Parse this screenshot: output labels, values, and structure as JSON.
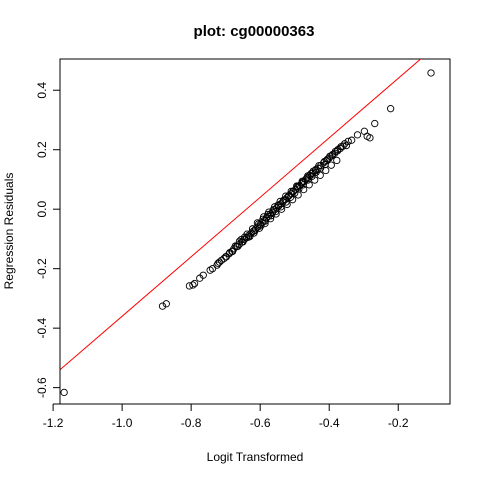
{
  "chart_data": {
    "type": "scatter",
    "title": "plot: cg00000363",
    "xlabel": "Logit Transformed",
    "ylabel": "Regression Residuals",
    "xlim": [
      -1.18,
      -0.05
    ],
    "ylim": [
      -0.655,
      0.505
    ],
    "x_ticks": [
      -1.2,
      -1.0,
      -0.8,
      -0.6,
      -0.4,
      -0.2
    ],
    "y_ticks": [
      -0.6,
      -0.4,
      -0.2,
      0.0,
      0.2,
      0.4
    ],
    "x_tick_labels": [
      "-1.2",
      "-1.0",
      "-0.8",
      "-0.6",
      "-0.4",
      "-0.2"
    ],
    "y_tick_labels": [
      "-0.6",
      "-0.4",
      "-0.2",
      "0.0",
      "0.2",
      "0.4"
    ],
    "grid": false,
    "point_color": "#000000",
    "point_style": "open-circle",
    "reference_line": {
      "color": "#ff0000",
      "intercept": 0.64,
      "slope": 1.0
    },
    "points": [
      {
        "x": -1.168,
        "y": -0.616
      },
      {
        "x": -0.883,
        "y": -0.326
      },
      {
        "x": -0.872,
        "y": -0.318
      },
      {
        "x": -0.805,
        "y": -0.258
      },
      {
        "x": -0.795,
        "y": -0.255
      },
      {
        "x": -0.79,
        "y": -0.25
      },
      {
        "x": -0.775,
        "y": -0.232
      },
      {
        "x": -0.765,
        "y": -0.222
      },
      {
        "x": -0.745,
        "y": -0.205
      },
      {
        "x": -0.738,
        "y": -0.2
      },
      {
        "x": -0.725,
        "y": -0.188
      },
      {
        "x": -0.718,
        "y": -0.178
      },
      {
        "x": -0.705,
        "y": -0.166
      },
      {
        "x": -0.698,
        "y": -0.16
      },
      {
        "x": -0.69,
        "y": -0.15
      },
      {
        "x": -0.682,
        "y": -0.142
      },
      {
        "x": -0.676,
        "y": -0.133
      },
      {
        "x": -0.668,
        "y": -0.125
      },
      {
        "x": -0.66,
        "y": -0.118
      },
      {
        "x": -0.653,
        "y": -0.11
      },
      {
        "x": -0.646,
        "y": -0.102
      },
      {
        "x": -0.64,
        "y": -0.096
      },
      {
        "x": -0.633,
        "y": -0.088
      },
      {
        "x": -0.626,
        "y": -0.081
      },
      {
        "x": -0.62,
        "y": -0.074
      },
      {
        "x": -0.613,
        "y": -0.066
      },
      {
        "x": -0.607,
        "y": -0.06
      },
      {
        "x": -0.6,
        "y": -0.052
      },
      {
        "x": -0.594,
        "y": -0.045
      },
      {
        "x": -0.588,
        "y": -0.038
      },
      {
        "x": -0.582,
        "y": -0.03
      },
      {
        "x": -0.576,
        "y": -0.024
      },
      {
        "x": -0.57,
        "y": -0.016
      },
      {
        "x": -0.564,
        "y": -0.01
      },
      {
        "x": -0.558,
        "y": -0.002
      },
      {
        "x": -0.552,
        "y": 0.004
      },
      {
        "x": -0.546,
        "y": 0.011
      },
      {
        "x": -0.54,
        "y": 0.018
      },
      {
        "x": -0.534,
        "y": 0.025
      },
      {
        "x": -0.528,
        "y": 0.032
      },
      {
        "x": -0.522,
        "y": 0.039
      },
      {
        "x": -0.516,
        "y": 0.046
      },
      {
        "x": -0.51,
        "y": 0.052
      },
      {
        "x": -0.504,
        "y": 0.059
      },
      {
        "x": -0.498,
        "y": 0.066
      },
      {
        "x": -0.492,
        "y": 0.072
      },
      {
        "x": -0.486,
        "y": 0.079
      },
      {
        "x": -0.48,
        "y": 0.086
      },
      {
        "x": -0.474,
        "y": 0.093
      },
      {
        "x": -0.468,
        "y": 0.1
      },
      {
        "x": -0.462,
        "y": 0.107
      },
      {
        "x": -0.456,
        "y": 0.114
      },
      {
        "x": -0.448,
        "y": 0.122
      },
      {
        "x": -0.44,
        "y": 0.13
      },
      {
        "x": -0.432,
        "y": 0.138
      },
      {
        "x": -0.424,
        "y": 0.147
      },
      {
        "x": -0.416,
        "y": 0.156
      },
      {
        "x": -0.408,
        "y": 0.164
      },
      {
        "x": -0.4,
        "y": 0.172
      },
      {
        "x": -0.392,
        "y": 0.18
      },
      {
        "x": -0.384,
        "y": 0.188
      },
      {
        "x": -0.376,
        "y": 0.196
      },
      {
        "x": -0.368,
        "y": 0.204
      },
      {
        "x": -0.36,
        "y": 0.212
      },
      {
        "x": -0.345,
        "y": 0.228
      },
      {
        "x": -0.318,
        "y": 0.25
      },
      {
        "x": -0.298,
        "y": 0.262
      },
      {
        "x": -0.29,
        "y": 0.245
      },
      {
        "x": -0.282,
        "y": 0.24
      },
      {
        "x": -0.268,
        "y": 0.288
      },
      {
        "x": -0.222,
        "y": 0.338
      },
      {
        "x": -0.105,
        "y": 0.458
      },
      {
        "x": -0.63,
        "y": -0.092
      },
      {
        "x": -0.615,
        "y": -0.072
      },
      {
        "x": -0.598,
        "y": -0.056
      },
      {
        "x": -0.585,
        "y": -0.04
      },
      {
        "x": -0.568,
        "y": -0.022
      },
      {
        "x": -0.555,
        "y": -0.008
      },
      {
        "x": -0.54,
        "y": 0.008
      },
      {
        "x": -0.525,
        "y": 0.024
      },
      {
        "x": -0.512,
        "y": 0.04
      },
      {
        "x": -0.5,
        "y": 0.054
      },
      {
        "x": -0.488,
        "y": 0.068
      },
      {
        "x": -0.475,
        "y": 0.082
      },
      {
        "x": -0.462,
        "y": 0.098
      },
      {
        "x": -0.45,
        "y": 0.11
      },
      {
        "x": -0.438,
        "y": 0.124
      },
      {
        "x": -0.425,
        "y": 0.138
      },
      {
        "x": -0.412,
        "y": 0.15
      },
      {
        "x": -0.66,
        "y": -0.108
      },
      {
        "x": -0.645,
        "y": -0.094
      },
      {
        "x": -0.605,
        "y": -0.05
      },
      {
        "x": -0.592,
        "y": -0.034
      },
      {
        "x": -0.578,
        "y": -0.018
      },
      {
        "x": -0.562,
        "y": -0.002
      },
      {
        "x": -0.548,
        "y": 0.014
      },
      {
        "x": -0.532,
        "y": 0.03
      },
      {
        "x": -0.518,
        "y": 0.044
      },
      {
        "x": -0.505,
        "y": 0.06
      },
      {
        "x": -0.492,
        "y": 0.076
      },
      {
        "x": -0.478,
        "y": 0.09
      },
      {
        "x": -0.465,
        "y": 0.104
      },
      {
        "x": -0.452,
        "y": 0.12
      },
      {
        "x": -0.438,
        "y": 0.134
      },
      {
        "x": -0.405,
        "y": 0.168
      },
      {
        "x": -0.39,
        "y": 0.184
      },
      {
        "x": -0.375,
        "y": 0.2
      },
      {
        "x": -0.355,
        "y": 0.22
      },
      {
        "x": -0.722,
        "y": -0.182
      },
      {
        "x": -0.712,
        "y": -0.172
      },
      {
        "x": -0.7,
        "y": -0.16
      },
      {
        "x": -0.688,
        "y": -0.146
      },
      {
        "x": -0.672,
        "y": -0.124
      },
      {
        "x": -0.655,
        "y": -0.102
      },
      {
        "x": -0.638,
        "y": -0.084
      },
      {
        "x": -0.622,
        "y": -0.066
      },
      {
        "x": -0.608,
        "y": -0.046
      },
      {
        "x": -0.59,
        "y": -0.026
      },
      {
        "x": -0.575,
        "y": -0.01
      },
      {
        "x": -0.558,
        "y": 0.008
      },
      {
        "x": -0.542,
        "y": 0.026
      },
      {
        "x": -0.526,
        "y": 0.044
      },
      {
        "x": -0.51,
        "y": 0.06
      },
      {
        "x": -0.494,
        "y": 0.078
      },
      {
        "x": -0.478,
        "y": 0.094
      },
      {
        "x": -0.462,
        "y": 0.112
      },
      {
        "x": -0.446,
        "y": 0.128
      },
      {
        "x": -0.43,
        "y": 0.146
      },
      {
        "x": -0.414,
        "y": 0.16
      },
      {
        "x": -0.398,
        "y": 0.178
      },
      {
        "x": -0.382,
        "y": 0.194
      },
      {
        "x": -0.366,
        "y": 0.21
      },
      {
        "x": -0.35,
        "y": 0.214
      },
      {
        "x": -0.335,
        "y": 0.232
      },
      {
        "x": -0.68,
        "y": -0.142
      },
      {
        "x": -0.665,
        "y": -0.125
      },
      {
        "x": -0.65,
        "y": -0.11
      },
      {
        "x": -0.634,
        "y": -0.094
      },
      {
        "x": -0.618,
        "y": -0.08
      },
      {
        "x": -0.602,
        "y": -0.064
      },
      {
        "x": -0.586,
        "y": -0.048
      },
      {
        "x": -0.57,
        "y": -0.032
      },
      {
        "x": -0.554,
        "y": -0.016
      },
      {
        "x": -0.538,
        "y": 0.0
      },
      {
        "x": -0.522,
        "y": 0.016
      },
      {
        "x": -0.506,
        "y": 0.032
      },
      {
        "x": -0.49,
        "y": 0.048
      },
      {
        "x": -0.474,
        "y": 0.066
      },
      {
        "x": -0.458,
        "y": 0.082
      },
      {
        "x": -0.442,
        "y": 0.098
      },
      {
        "x": -0.426,
        "y": 0.114
      },
      {
        "x": -0.41,
        "y": 0.13
      },
      {
        "x": -0.394,
        "y": 0.148
      },
      {
        "x": -0.378,
        "y": 0.164
      }
    ]
  }
}
